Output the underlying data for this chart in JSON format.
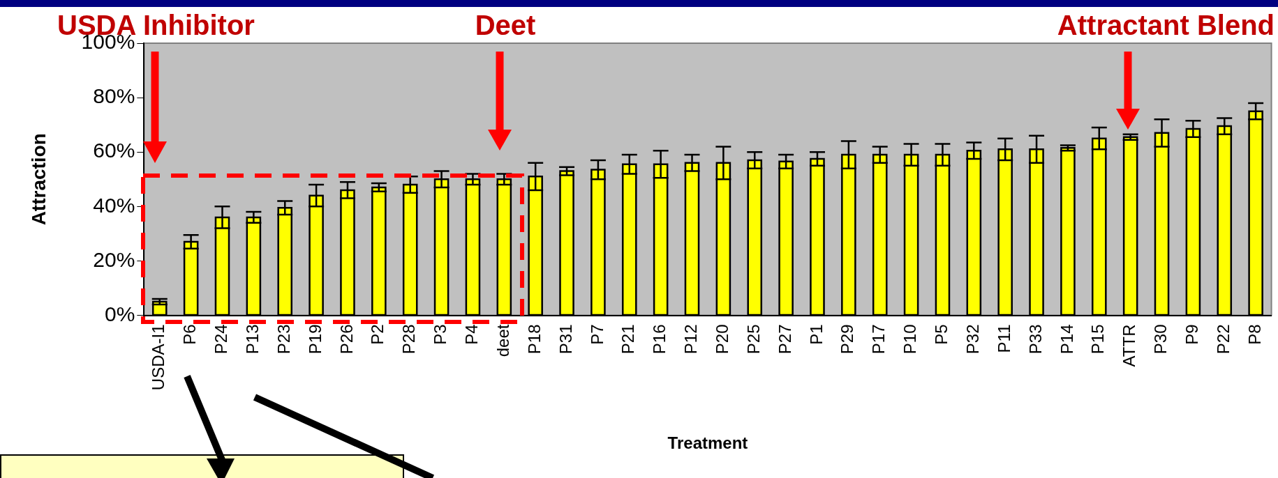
{
  "chart_data": {
    "type": "bar",
    "xlabel": "Treatment",
    "ylabel": "Attraction",
    "categories": [
      "USDA-I1",
      "P6",
      "P24",
      "P13",
      "P23",
      "P19",
      "P26",
      "P2",
      "P28",
      "P3",
      "P4",
      "deet",
      "P18",
      "P31",
      "P7",
      "P21",
      "P16",
      "P12",
      "P20",
      "P25",
      "P27",
      "P1",
      "P29",
      "P17",
      "P10",
      "P5",
      "P32",
      "P11",
      "P33",
      "P14",
      "P15",
      "ATTR",
      "P30",
      "P9",
      "P22",
      "P8"
    ],
    "series": [
      {
        "color": "#ffff00",
        "values": [
          5,
          27,
          36,
          36,
          39.5,
          44,
          46,
          47,
          48,
          50,
          50,
          50,
          51,
          53,
          53.5,
          55.5,
          55.5,
          56,
          56,
          57,
          56.5,
          57.5,
          59,
          59,
          59,
          59,
          60.5,
          61,
          61,
          61.5,
          65,
          65.5,
          67,
          68.5,
          69.5,
          75
        ],
        "errors": [
          1,
          2.5,
          4,
          2,
          2.5,
          4,
          3,
          1.5,
          3,
          3,
          2,
          2,
          5,
          1.5,
          3.5,
          3.5,
          5,
          3,
          6,
          3,
          2.5,
          2.5,
          5,
          3,
          4,
          4,
          3,
          4,
          5,
          1,
          4,
          1,
          5,
          3,
          3,
          3
        ]
      }
    ],
    "ylim": [
      0,
      100
    ],
    "yticks": [
      {
        "value": 0,
        "label": "0%"
      },
      {
        "value": 20,
        "label": "20%"
      },
      {
        "value": 40,
        "label": "40%"
      },
      {
        "value": 60,
        "label": "60%"
      },
      {
        "value": 80,
        "label": "80%"
      },
      {
        "value": 100,
        "label": "100%"
      }
    ],
    "grid": false,
    "legend": false,
    "annotations": [
      "USDA Inhibitor",
      "Deet",
      "Attractant Blend"
    ]
  }
}
